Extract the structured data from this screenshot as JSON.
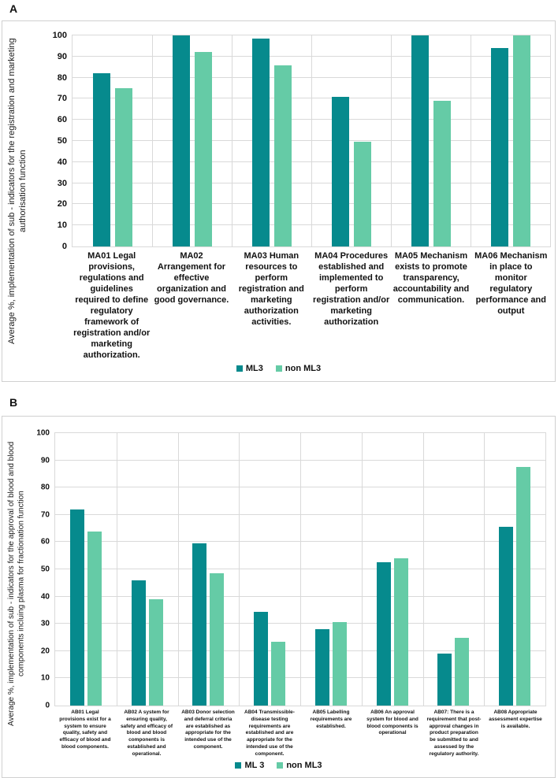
{
  "figure": {
    "panels": [
      {
        "label": "A"
      },
      {
        "label": "B"
      }
    ],
    "colors": {
      "ml3": "#068a8d",
      "non_ml3": "#65cba6",
      "gridline": "#d9d9d9"
    }
  },
  "chart_data": [
    {
      "type": "bar",
      "title": "",
      "xlabel": "",
      "ylabel": "Average %, implementation of sub - indicators for the registration and marketing authorisation function",
      "ylim": [
        0,
        100
      ],
      "ytick_step": 10,
      "grid": true,
      "legend_position": "bottom",
      "categories": [
        "MA01 Legal provisions, regulations and guidelines required to define regulatory framework of registration and/or marketing authorization.",
        "MA02 Arrangement for effective organization and good governance.",
        "MA03 Human resources to perform registration and marketing authorization activities.",
        "MA04 Procedures established and implemented to perform registration and/or marketing authorization",
        "MA05 Mechanism exists to promote transparency, accountability and communication.",
        "MA06 Mechanism in place to monitor regulatory performance and output"
      ],
      "series": [
        {
          "name": "ML3",
          "color": "#068a8d",
          "values": [
            82,
            100,
            98.5,
            71,
            100,
            94
          ]
        },
        {
          "name": "non ML3",
          "color": "#65cba6",
          "values": [
            75,
            92,
            86,
            49.5,
            69,
            100
          ]
        }
      ]
    },
    {
      "type": "bar",
      "title": "",
      "xlabel": "",
      "ylabel": "Average %, implementation of sub - indicators for the approval of blood and blood components incluing plasma for fractionation function",
      "ylim": [
        0,
        100
      ],
      "ytick_step": 10,
      "grid": true,
      "legend_position": "bottom",
      "categories": [
        "AB01 Legal provisions exist for a system to ensure quality, safety and efficacy of blood and blood components.",
        "AB02 A system for ensuring quality, safety and efficacy of blood and blood components is established and operational.",
        "AB03 Donor selection and deferral criteria are established as appropriate for the intended use of the component.",
        "AB04 Transmissible-disease testing requirements are established and are appropriate for the intended use of the component.",
        "AB05 Labelling requirements are established.",
        "AB06 An approval system for blood and blood components is operational",
        "AB07: There is a requirement that post-approval changes in product preparation be submitted to and assessed by the regulatory authority.",
        "AB08 Appropriate assessment expertise is available."
      ],
      "series": [
        {
          "name": "ML 3",
          "color": "#068a8d",
          "values": [
            72,
            46,
            59.5,
            34.5,
            28,
            52.5,
            19,
            65.5
          ]
        },
        {
          "name": "non ML3",
          "color": "#65cba6",
          "values": [
            64,
            39,
            48.5,
            23.5,
            30.5,
            54,
            25,
            87.5
          ]
        }
      ]
    }
  ]
}
